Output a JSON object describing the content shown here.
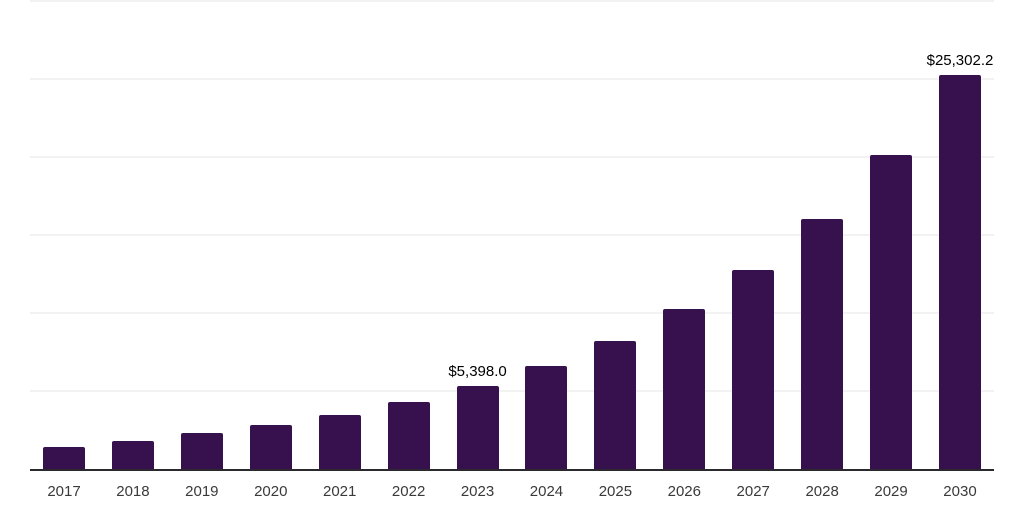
{
  "chart_data": {
    "type": "bar",
    "title": "",
    "xlabel": "",
    "ylabel": "",
    "ylim": [
      0,
      30000
    ],
    "gridline_step": 5000,
    "grid": "horizontal-only",
    "legend": "none",
    "y_axis_tick_labels_visible": false,
    "categories": [
      "2017",
      "2018",
      "2019",
      "2020",
      "2021",
      "2022",
      "2023",
      "2024",
      "2025",
      "2026",
      "2027",
      "2028",
      "2029",
      "2030"
    ],
    "values": [
      1490,
      1880,
      2350,
      2890,
      3520,
      4340,
      5398.0,
      6700,
      8300,
      10300,
      12800,
      16100,
      20200,
      25302.2
    ],
    "value_labels": [
      "",
      "",
      "",
      "",
      "",
      "",
      "$5,398.0",
      "",
      "",
      "",
      "",
      "",
      "",
      "$25,302.2"
    ]
  },
  "colors": {
    "bar": "#36114E",
    "background": "#ffffff",
    "gridline": "#f2f2f2",
    "axis_line": "#2a2a2e",
    "x_label": "#3a3a3a",
    "value_label": "#000000"
  }
}
